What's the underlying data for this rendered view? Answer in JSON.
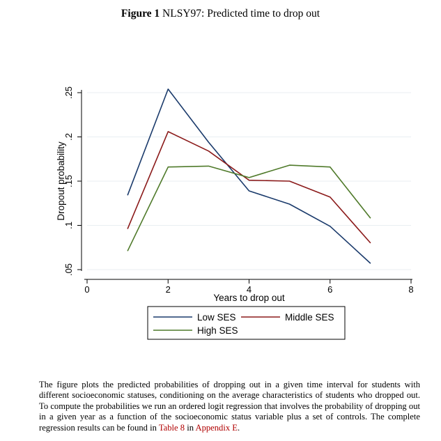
{
  "figure": {
    "label": "Figure 1",
    "title": "NLSY97: Predicted time to drop out"
  },
  "chart_data": {
    "type": "line",
    "xlabel": "Years to drop out",
    "ylabel": "Dropout probability",
    "xlim": [
      0,
      8
    ],
    "ylim": [
      0.05,
      0.25
    ],
    "xticks": [
      0,
      2,
      4,
      6,
      8
    ],
    "yticks": [
      0.05,
      0.1,
      0.15,
      0.2,
      0.25
    ],
    "xtick_labels": [
      "0",
      "2",
      "4",
      "6",
      "8"
    ],
    "ytick_labels": [
      ".05",
      ".1",
      ".15",
      ".2",
      ".25"
    ],
    "grid": "horizontal",
    "legend_position": "bottom",
    "x": [
      1,
      2,
      3,
      4,
      5,
      6,
      7
    ],
    "series": [
      {
        "name": "Low SES",
        "color": "#1a3a6b",
        "values": [
          0.134,
          0.254,
          0.194,
          0.139,
          0.124,
          0.099,
          0.057
        ]
      },
      {
        "name": "Middle SES",
        "color": "#8b1a1a",
        "values": [
          0.096,
          0.206,
          0.184,
          0.151,
          0.15,
          0.132,
          0.08
        ]
      },
      {
        "name": "High SES",
        "color": "#4f7a2a",
        "values": [
          0.071,
          0.166,
          0.167,
          0.154,
          0.168,
          0.166,
          0.108
        ]
      }
    ]
  },
  "caption": {
    "text": "The figure plots the predicted probabilities of dropping out in a given time interval for students with different socioeconomic statuses, conditioning on the average characteristics of students who dropped out.  To compute the probabilities we run an ordered logit regression that involves the probability of dropping out in a given year as a function of the socioeconomic status variable plus a set of controls. The complete regression results can be found in ",
    "link1": "Table 8",
    "mid": " in ",
    "link2": "Appendix E",
    "end": "."
  }
}
